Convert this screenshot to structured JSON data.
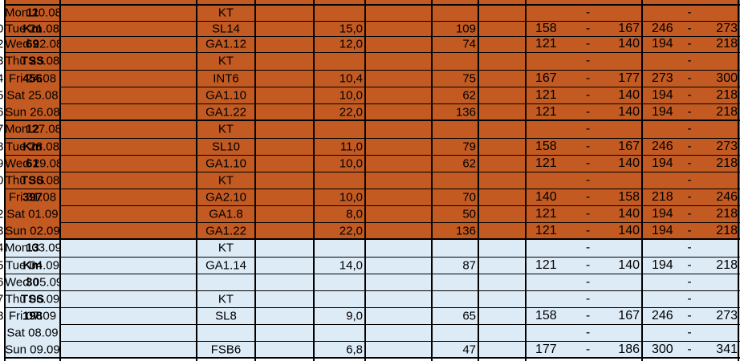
{
  "colors": {
    "orange": "#C35A22",
    "blue": "#DDEBF7",
    "grid": "#000000",
    "white": "#FFFFFF"
  },
  "left_digits": [
    "0",
    "2",
    "3",
    "4",
    "5",
    "6",
    "7",
    "8",
    "9",
    "0",
    "",
    "2",
    "3",
    "4",
    "5",
    "6",
    "7",
    "8"
  ],
  "rows": [
    {
      "week": "11",
      "date": "Mon 20.08",
      "session": "KT",
      "km": "",
      "tss": "",
      "hr_lo": "",
      "hr_dash": "-",
      "hr_hi": "",
      "pw_lo": "",
      "pw_dash": "-",
      "pw_hi": ""
    },
    {
      "week": "Km",
      "date": "Tue 21.08",
      "session": "SL14",
      "km": "15,0",
      "tss": "109",
      "hr_lo": "158",
      "hr_dash": "-",
      "hr_hi": "167",
      "pw_lo": "246",
      "pw_dash": "-",
      "pw_hi": "273"
    },
    {
      "week": "69",
      "date": "Wed 22.08",
      "session": "GA1.12",
      "km": "12,0",
      "tss": "74",
      "hr_lo": "121",
      "hr_dash": "-",
      "hr_hi": "140",
      "pw_lo": "194",
      "pw_dash": "-",
      "pw_hi": "218"
    },
    {
      "week": "TSS",
      "date": "Thu 23.08",
      "session": "KT",
      "km": "",
      "tss": "",
      "hr_lo": "",
      "hr_dash": "-",
      "hr_hi": "",
      "pw_lo": "",
      "pw_dash": "-",
      "pw_hi": ""
    },
    {
      "week": "456",
      "date": "Fri 24.08",
      "session": "INT6",
      "km": "10,4",
      "tss": "75",
      "hr_lo": "167",
      "hr_dash": "-",
      "hr_hi": "177",
      "pw_lo": "273",
      "pw_dash": "-",
      "pw_hi": "300"
    },
    {
      "week": "",
      "date": "Sat 25.08",
      "session": "GA1.10",
      "km": "10,0",
      "tss": "62",
      "hr_lo": "121",
      "hr_dash": "-",
      "hr_hi": "140",
      "pw_lo": "194",
      "pw_dash": "-",
      "pw_hi": "218"
    },
    {
      "week": "",
      "date": "Sun 26.08",
      "session": "GA1.22",
      "km": "22,0",
      "tss": "136",
      "hr_lo": "121",
      "hr_dash": "-",
      "hr_hi": "140",
      "pw_lo": "194",
      "pw_dash": "-",
      "pw_hi": "218"
    },
    {
      "week": "12",
      "date": "Mon 27.08",
      "session": "KT",
      "km": "",
      "tss": "",
      "hr_lo": "",
      "hr_dash": "-",
      "hr_hi": "",
      "pw_lo": "",
      "pw_dash": "-",
      "pw_hi": ""
    },
    {
      "week": "Km",
      "date": "Tue 28.08",
      "session": "SL10",
      "km": "11,0",
      "tss": "79",
      "hr_lo": "158",
      "hr_dash": "-",
      "hr_hi": "167",
      "pw_lo": "246",
      "pw_dash": "-",
      "pw_hi": "273"
    },
    {
      "week": "61",
      "date": "Wed 29.08",
      "session": "GA1.10",
      "km": "10,0",
      "tss": "62",
      "hr_lo": "121",
      "hr_dash": "-",
      "hr_hi": "140",
      "pw_lo": "194",
      "pw_dash": "-",
      "pw_hi": "218"
    },
    {
      "week": "TSS",
      "date": "Thu 30.08",
      "session": "KT",
      "km": "",
      "tss": "",
      "hr_lo": "",
      "hr_dash": "-",
      "hr_hi": "",
      "pw_lo": "",
      "pw_dash": "-",
      "pw_hi": ""
    },
    {
      "week": "397",
      "date": "Fri 31.08",
      "session": "GA2.10",
      "km": "10,0",
      "tss": "70",
      "hr_lo": "140",
      "hr_dash": "-",
      "hr_hi": "158",
      "pw_lo": "218",
      "pw_dash": "-",
      "pw_hi": "246"
    },
    {
      "week": "",
      "date": "Sat 01.09",
      "session": "GA1.8",
      "km": "8,0",
      "tss": "50",
      "hr_lo": "121",
      "hr_dash": "-",
      "hr_hi": "140",
      "pw_lo": "194",
      "pw_dash": "-",
      "pw_hi": "218"
    },
    {
      "week": "",
      "date": "Sun 02.09",
      "session": "GA1.22",
      "km": "22,0",
      "tss": "136",
      "hr_lo": "121",
      "hr_dash": "-",
      "hr_hi": "140",
      "pw_lo": "194",
      "pw_dash": "-",
      "pw_hi": "218"
    },
    {
      "week": "13",
      "date": "Mon 03.09",
      "session": "KT",
      "km": "",
      "tss": "",
      "hr_lo": "",
      "hr_dash": "-",
      "hr_hi": "",
      "pw_lo": "",
      "pw_dash": "-",
      "pw_hi": ""
    },
    {
      "week": "Km",
      "date": "Tue 04.09",
      "session": "GA1.14",
      "km": "14,0",
      "tss": "87",
      "hr_lo": "121",
      "hr_dash": "-",
      "hr_hi": "140",
      "pw_lo": "194",
      "pw_dash": "-",
      "pw_hi": "218"
    },
    {
      "week": "30",
      "date": "Wed 05.09",
      "session": "",
      "km": "",
      "tss": "",
      "hr_lo": "",
      "hr_dash": "-",
      "hr_hi": "",
      "pw_lo": "",
      "pw_dash": "-",
      "pw_hi": ""
    },
    {
      "week": "TSS",
      "date": "Thu 06.09",
      "session": "KT",
      "km": "",
      "tss": "",
      "hr_lo": "",
      "hr_dash": "-",
      "hr_hi": "",
      "pw_lo": "",
      "pw_dash": "-",
      "pw_hi": ""
    },
    {
      "week": "198",
      "date": "Fri 07.09",
      "session": "SL8",
      "km": "9,0",
      "tss": "65",
      "hr_lo": "158",
      "hr_dash": "-",
      "hr_hi": "167",
      "pw_lo": "246",
      "pw_dash": "-",
      "pw_hi": "273"
    },
    {
      "week": "",
      "date": "Sat 08.09",
      "session": "",
      "km": "",
      "tss": "",
      "hr_lo": "",
      "hr_dash": "-",
      "hr_hi": "",
      "pw_lo": "",
      "pw_dash": "-",
      "pw_hi": ""
    },
    {
      "week": "",
      "date": "Sun 09.09",
      "session": "FSB6",
      "km": "6,8",
      "tss": "47",
      "hr_lo": "177",
      "hr_dash": "-",
      "hr_hi": "186",
      "pw_lo": "300",
      "pw_dash": "-",
      "pw_hi": "341"
    }
  ]
}
